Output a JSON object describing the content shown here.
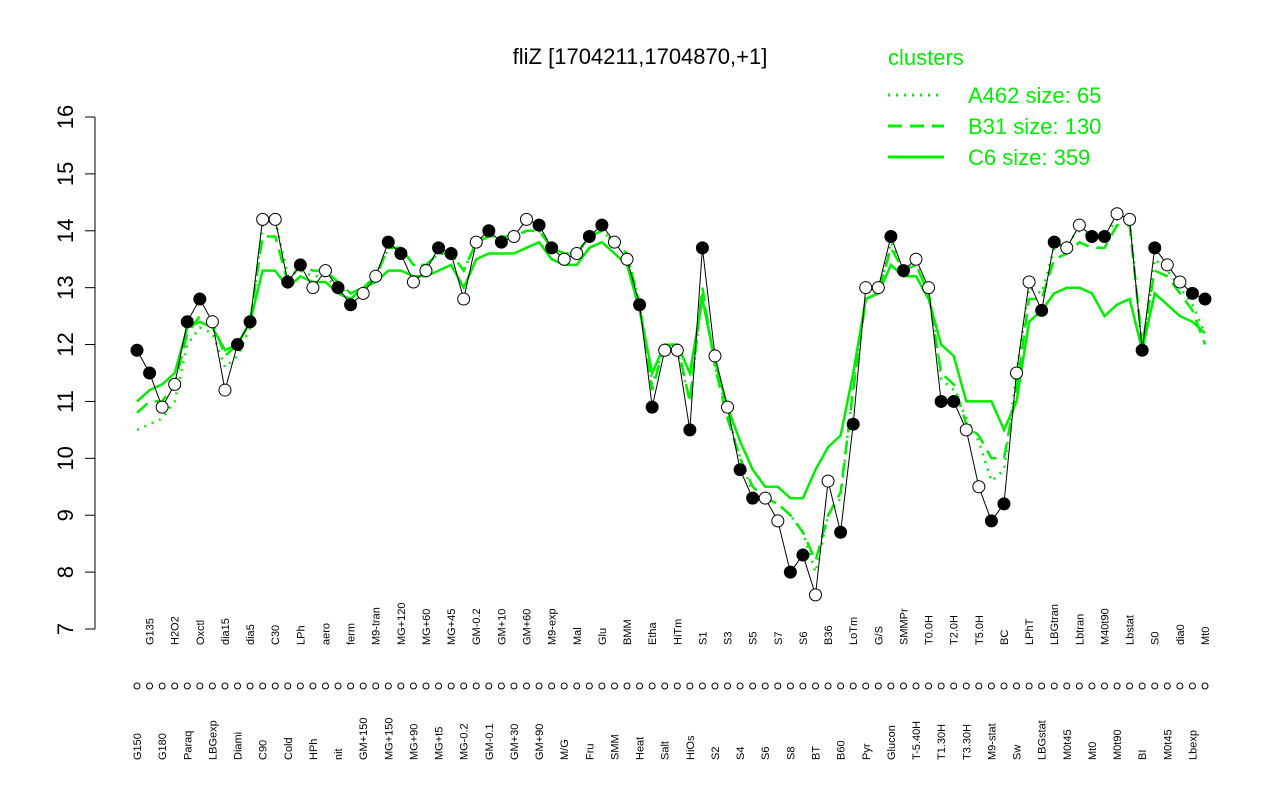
{
  "chart_data": {
    "type": "line",
    "title": "fliZ [1704211,1704870,+1]",
    "categories": [
      "G150",
      "G135",
      "G180",
      "H2O2",
      "Paraq",
      "Oxctl",
      "LBGexp",
      "dia15",
      "Diami",
      "dia5",
      "C90",
      "C30",
      "Cold",
      "LPh",
      "HPh",
      "aero",
      "nit",
      "ferm",
      "GM+150",
      "M9-tran",
      "MG+150",
      "MG+120",
      "MG+90",
      "MG+60",
      "MG+t5",
      "MG+45",
      "MG-0.2",
      "GM-0.2",
      "GM-0.1",
      "GM+10",
      "GM+30",
      "GM+60",
      "GM+90",
      "M9-exp",
      "M/G",
      "Mal",
      "Fru",
      "Glu",
      "SMM",
      "BMM",
      "Heat",
      "Etha",
      "Salt",
      "HiTm",
      "HiOs",
      "S1",
      "S2",
      "S3",
      "S4",
      "S5",
      "S6",
      "S7",
      "S8",
      "S6",
      "BT",
      "B36",
      "B60",
      "LoTm",
      "Pyr",
      "G/S",
      "Glucon",
      "SMMPr",
      "T-5.40H",
      "T0.0H",
      "T1.30H",
      "T2.0H",
      "T3.30H",
      "T5.0H",
      "M9-stat",
      "BC",
      "Sw",
      "LPhT",
      "LBGstat",
      "LBGtran",
      "M0t45",
      "Lbtran",
      "Mt0",
      "M40t90",
      "M0t90",
      "Lbstat",
      "BI",
      "S0",
      "M0t45",
      "dia0",
      "Lbexp",
      "Mt0"
    ],
    "values": [
      11.9,
      11.5,
      10.9,
      11.3,
      12.4,
      12.8,
      12.4,
      11.2,
      12.0,
      12.4,
      14.2,
      14.2,
      13.1,
      13.4,
      13.0,
      13.3,
      13.0,
      12.7,
      12.9,
      13.2,
      13.8,
      13.6,
      13.1,
      13.3,
      13.7,
      13.6,
      12.8,
      13.8,
      14.0,
      13.8,
      13.9,
      14.2,
      14.1,
      13.7,
      13.5,
      13.6,
      13.9,
      14.1,
      13.8,
      13.5,
      12.7,
      10.9,
      11.9,
      11.9,
      10.5,
      13.7,
      11.8,
      10.9,
      9.8,
      9.3,
      9.3,
      8.9,
      8.0,
      8.3,
      7.6,
      9.6,
      8.7,
      10.6,
      13.0,
      13.0,
      13.9,
      13.3,
      13.5,
      13.0,
      11.0,
      11.0,
      10.5,
      9.5,
      8.9,
      9.2,
      11.5,
      13.1,
      12.6,
      13.8,
      13.7,
      14.1,
      13.9,
      13.9,
      14.3,
      14.2,
      11.9,
      13.7,
      13.4,
      13.1,
      12.9,
      12.8
    ],
    "point_fills": [
      "#000000",
      "#ffffff"
    ],
    "series": [
      {
        "name": "A462 size: 65",
        "color": "#00ee00",
        "style": "dotted",
        "values": [
          10.5,
          10.6,
          10.7,
          11.0,
          12.0,
          12.3,
          12.2,
          11.6,
          11.8,
          12.3,
          14.1,
          14.2,
          13.2,
          13.3,
          13.2,
          13.2,
          13.0,
          12.9,
          13.0,
          13.2,
          13.7,
          13.7,
          13.4,
          13.4,
          13.6,
          13.6,
          13.3,
          13.8,
          13.9,
          13.9,
          13.9,
          14.0,
          14.0,
          13.7,
          13.6,
          13.6,
          13.9,
          14.0,
          13.8,
          13.6,
          12.7,
          11.3,
          12.0,
          11.9,
          11.0,
          12.9,
          11.6,
          10.8,
          10.0,
          9.4,
          9.3,
          9.2,
          9.0,
          8.7,
          8.0,
          9.0,
          9.3,
          11.3,
          12.8,
          12.9,
          13.8,
          13.3,
          13.4,
          13.0,
          11.4,
          11.2,
          10.7,
          10.3,
          9.6,
          9.8,
          11.5,
          13.0,
          12.9,
          13.7,
          13.8,
          14.0,
          13.9,
          13.9,
          14.2,
          14.2,
          11.9,
          13.5,
          13.3,
          13.0,
          12.7,
          12.2
        ]
      },
      {
        "name": "B31 size: 130",
        "color": "#00ee00",
        "style": "dashed",
        "values": [
          10.8,
          11.0,
          11.0,
          11.3,
          12.2,
          12.5,
          12.4,
          11.8,
          12.0,
          12.4,
          13.9,
          13.9,
          13.1,
          13.4,
          13.3,
          13.3,
          13.1,
          12.9,
          13.0,
          13.2,
          13.7,
          13.7,
          13.4,
          13.4,
          13.6,
          13.6,
          13.3,
          13.8,
          13.9,
          13.9,
          13.9,
          14.0,
          14.0,
          13.7,
          13.6,
          13.6,
          13.9,
          14.0,
          13.8,
          13.6,
          12.7,
          11.2,
          12.0,
          12.0,
          11.0,
          13.0,
          11.6,
          10.7,
          10.0,
          9.5,
          9.3,
          9.2,
          9.0,
          8.7,
          8.2,
          9.0,
          9.4,
          11.2,
          12.8,
          12.9,
          13.7,
          13.3,
          13.4,
          12.9,
          11.5,
          11.3,
          10.6,
          10.4,
          10.0,
          10.0,
          11.2,
          12.8,
          12.8,
          13.5,
          13.6,
          13.8,
          13.7,
          13.7,
          14.1,
          14.1,
          12.0,
          13.3,
          13.2,
          12.9,
          12.6,
          12.0
        ]
      },
      {
        "name": "C6 size: 359",
        "color": "#00ee00",
        "style": "solid",
        "values": [
          11.0,
          11.2,
          11.3,
          11.5,
          12.3,
          12.4,
          12.3,
          11.9,
          12.0,
          12.4,
          13.3,
          13.3,
          13.0,
          13.2,
          13.1,
          13.1,
          12.9,
          12.8,
          13.0,
          13.1,
          13.3,
          13.3,
          13.2,
          13.2,
          13.3,
          13.4,
          13.0,
          13.5,
          13.6,
          13.6,
          13.6,
          13.7,
          13.8,
          13.5,
          13.4,
          13.4,
          13.7,
          13.8,
          13.6,
          13.4,
          12.6,
          11.5,
          12.0,
          12.0,
          11.5,
          12.8,
          11.7,
          10.9,
          10.3,
          9.8,
          9.5,
          9.5,
          9.3,
          9.3,
          9.8,
          10.2,
          10.4,
          11.5,
          12.8,
          12.9,
          13.4,
          13.2,
          13.2,
          12.8,
          12.0,
          11.8,
          11.0,
          11.0,
          11.0,
          10.5,
          11.0,
          12.4,
          12.6,
          12.9,
          13.0,
          13.0,
          12.9,
          12.5,
          12.7,
          12.8,
          11.9,
          12.9,
          12.7,
          12.5,
          12.4,
          12.2
        ]
      }
    ],
    "legend_title": "clusters",
    "legend_color": "#00ee00",
    "ylim": [
      7,
      16
    ],
    "yticks": [
      7,
      8,
      9,
      10,
      11,
      12,
      13,
      14,
      15,
      16
    ]
  }
}
